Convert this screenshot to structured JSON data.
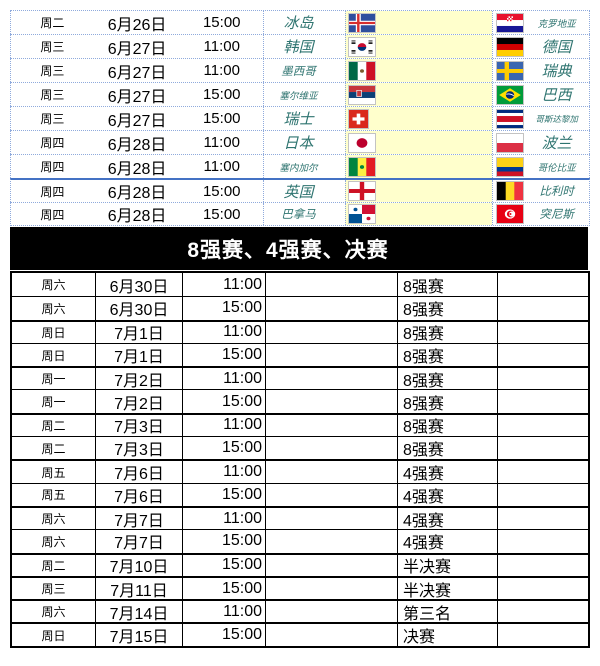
{
  "colors": {
    "highlight": "#FFFFCC",
    "dashed_border": "#8FAADC",
    "divider_blue": "#4472C4",
    "team_text": "#2E7470",
    "banner_bg": "#000000",
    "banner_text": "#FFFFFF"
  },
  "group_stage": {
    "rows": [
      {
        "weekday": "周二",
        "date": "6月26日",
        "time": "15:00",
        "home": "冰岛",
        "home_flag": "iceland",
        "away": "克罗地亚",
        "away_flag": "croatia"
      },
      {
        "weekday": "周三",
        "date": "6月27日",
        "time": "11:00",
        "home": "韩国",
        "home_flag": "south-korea",
        "away": "德国",
        "away_flag": "germany"
      },
      {
        "weekday": "周三",
        "date": "6月27日",
        "time": "11:00",
        "home": "墨西哥",
        "home_flag": "mexico",
        "away": "瑞典",
        "away_flag": "sweden"
      },
      {
        "weekday": "周三",
        "date": "6月27日",
        "time": "15:00",
        "home": "塞尔维亚",
        "home_flag": "serbia",
        "away": "巴西",
        "away_flag": "brazil"
      },
      {
        "weekday": "周三",
        "date": "6月27日",
        "time": "15:00",
        "home": "瑞士",
        "home_flag": "switzerland",
        "away": "哥斯达黎加",
        "away_flag": "costa-rica"
      },
      {
        "weekday": "周四",
        "date": "6月28日",
        "time": "11:00",
        "home": "日本",
        "home_flag": "japan",
        "away": "波兰",
        "away_flag": "poland"
      },
      {
        "weekday": "周四",
        "date": "6月28日",
        "time": "11:00",
        "home": "塞内加尔",
        "home_flag": "senegal",
        "away": "哥伦比亚",
        "away_flag": "colombia"
      },
      {
        "weekday": "周四",
        "date": "6月28日",
        "time": "15:00",
        "home": "英国",
        "home_flag": "england",
        "away": "比利时",
        "away_flag": "belgium",
        "divider_above": true
      },
      {
        "weekday": "周四",
        "date": "6月28日",
        "time": "15:00",
        "home": "巴拿马",
        "home_flag": "panama",
        "away": "突尼斯",
        "away_flag": "tunisia"
      }
    ]
  },
  "knockout": {
    "title": "8强赛、4强赛、决赛",
    "rows": [
      {
        "weekday": "周六",
        "date": "6月30日",
        "time": "11:00",
        "stage": "8强赛"
      },
      {
        "weekday": "周六",
        "date": "6月30日",
        "time": "15:00",
        "stage": "8强赛"
      },
      {
        "weekday": "周日",
        "date": "7月1日",
        "time": "11:00",
        "stage": "8强赛"
      },
      {
        "weekday": "周日",
        "date": "7月1日",
        "time": "15:00",
        "stage": "8强赛"
      },
      {
        "weekday": "周一",
        "date": "7月2日",
        "time": "11:00",
        "stage": "8强赛"
      },
      {
        "weekday": "周一",
        "date": "7月2日",
        "time": "15:00",
        "stage": "8强赛"
      },
      {
        "weekday": "周二",
        "date": "7月3日",
        "time": "11:00",
        "stage": "8强赛"
      },
      {
        "weekday": "周二",
        "date": "7月3日",
        "time": "15:00",
        "stage": "8强赛"
      },
      {
        "weekday": "周五",
        "date": "7月6日",
        "time": "11:00",
        "stage": "4强赛"
      },
      {
        "weekday": "周五",
        "date": "7月6日",
        "time": "15:00",
        "stage": "4强赛"
      },
      {
        "weekday": "周六",
        "date": "7月7日",
        "time": "11:00",
        "stage": "4强赛"
      },
      {
        "weekday": "周六",
        "date": "7月7日",
        "time": "15:00",
        "stage": "4强赛"
      },
      {
        "weekday": "周二",
        "date": "7月10日",
        "time": "15:00",
        "stage": "半决赛"
      },
      {
        "weekday": "周三",
        "date": "7月11日",
        "time": "15:00",
        "stage": "半决赛"
      },
      {
        "weekday": "周六",
        "date": "7月14日",
        "time": "11:00",
        "stage": "第三名"
      },
      {
        "weekday": "周日",
        "date": "7月15日",
        "time": "15:00",
        "stage": "决赛"
      }
    ]
  }
}
